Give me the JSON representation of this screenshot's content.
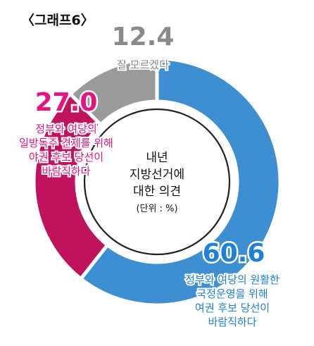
{
  "header": {
    "label": "〈그래프6〉"
  },
  "chart_data": {
    "type": "pie",
    "variant": "donut",
    "title": "",
    "center_label": [
      "내년",
      "지방선거에",
      "대한 의견"
    ],
    "unit_label": "(단위 : %)",
    "slices": [
      {
        "value": 60.6,
        "value_label": "60.6",
        "label_lines": [
          "정부와 여당의 원활한",
          "국정운영을 위해",
          "여권 후보 당선이",
          "바람직하다"
        ],
        "color": "#3d8fd1"
      },
      {
        "value": 27.0,
        "value_label": "27.0",
        "label_lines": [
          "정부와 여당의",
          "일방독주 견제를 위해",
          "야권 후보 당선이",
          "바람직하다"
        ],
        "color": "#c0135e"
      },
      {
        "value": 12.4,
        "value_label": "12.4",
        "label_lines": [
          "잘 모르겠다"
        ],
        "color": "#9a9a9a"
      }
    ]
  },
  "colors": {
    "accent_pink": "#e8147e",
    "accent_blue": "#1f80d6",
    "gray_text": "#8a8a8a"
  }
}
